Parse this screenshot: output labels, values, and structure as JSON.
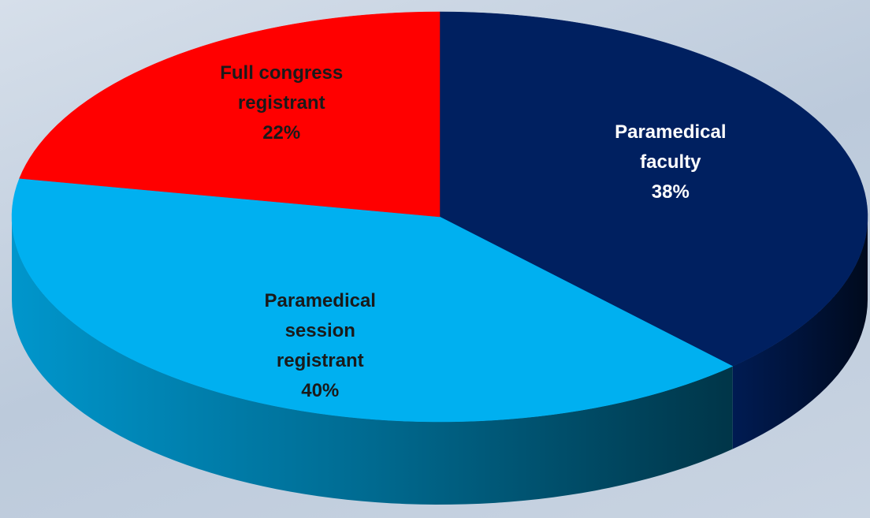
{
  "chart_data": {
    "type": "pie",
    "categories": [
      "Paramedical faculty",
      "Paramedical session registrant",
      "Full congress registrant"
    ],
    "values": [
      38,
      40,
      22
    ],
    "value_labels": [
      "38%",
      "40%",
      "22%"
    ],
    "colors": [
      "#002060",
      "#00b0f0",
      "#ff0000"
    ],
    "label_colors": [
      "#ffffff",
      "#1a1a1a",
      "#1a1a1a"
    ]
  }
}
